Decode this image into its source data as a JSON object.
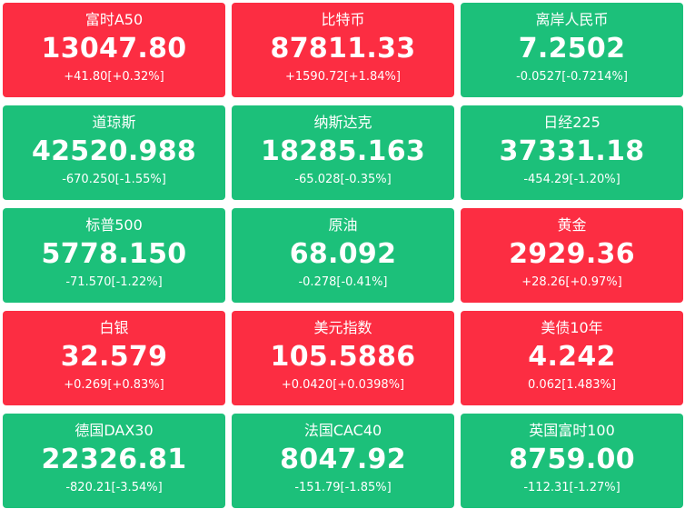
{
  "colors": {
    "up": "#fc2d42",
    "down": "#1cc07a",
    "text": "#ffffff"
  },
  "tiles": [
    {
      "name": "富时A50",
      "price": "13047.80",
      "change": "+41.80[+0.32%]",
      "trend": "up"
    },
    {
      "name": "比特币",
      "price": "87811.33",
      "change": "+1590.72[+1.84%]",
      "trend": "up"
    },
    {
      "name": "离岸人民币",
      "price": "7.2502",
      "change": "-0.0527[-0.7214%]",
      "trend": "down"
    },
    {
      "name": "道琼斯",
      "price": "42520.988",
      "change": "-670.250[-1.55%]",
      "trend": "down"
    },
    {
      "name": "纳斯达克",
      "price": "18285.163",
      "change": "-65.028[-0.35%]",
      "trend": "down"
    },
    {
      "name": "日经225",
      "price": "37331.18",
      "change": "-454.29[-1.20%]",
      "trend": "down"
    },
    {
      "name": "标普500",
      "price": "5778.150",
      "change": "-71.570[-1.22%]",
      "trend": "down"
    },
    {
      "name": "原油",
      "price": "68.092",
      "change": "-0.278[-0.41%]",
      "trend": "down"
    },
    {
      "name": "黄金",
      "price": "2929.36",
      "change": "+28.26[+0.97%]",
      "trend": "up"
    },
    {
      "name": "白银",
      "price": "32.579",
      "change": "+0.269[+0.83%]",
      "trend": "up"
    },
    {
      "name": "美元指数",
      "price": "105.5886",
      "change": "+0.0420[+0.0398%]",
      "trend": "up"
    },
    {
      "name": "美债10年",
      "price": "4.242",
      "change": "0.062[1.483%]",
      "trend": "up"
    },
    {
      "name": "德国DAX30",
      "price": "22326.81",
      "change": "-820.21[-3.54%]",
      "trend": "down"
    },
    {
      "name": "法国CAC40",
      "price": "8047.92",
      "change": "-151.79[-1.85%]",
      "trend": "down"
    },
    {
      "name": "英国富时100",
      "price": "8759.00",
      "change": "-112.31[-1.27%]",
      "trend": "down"
    }
  ]
}
